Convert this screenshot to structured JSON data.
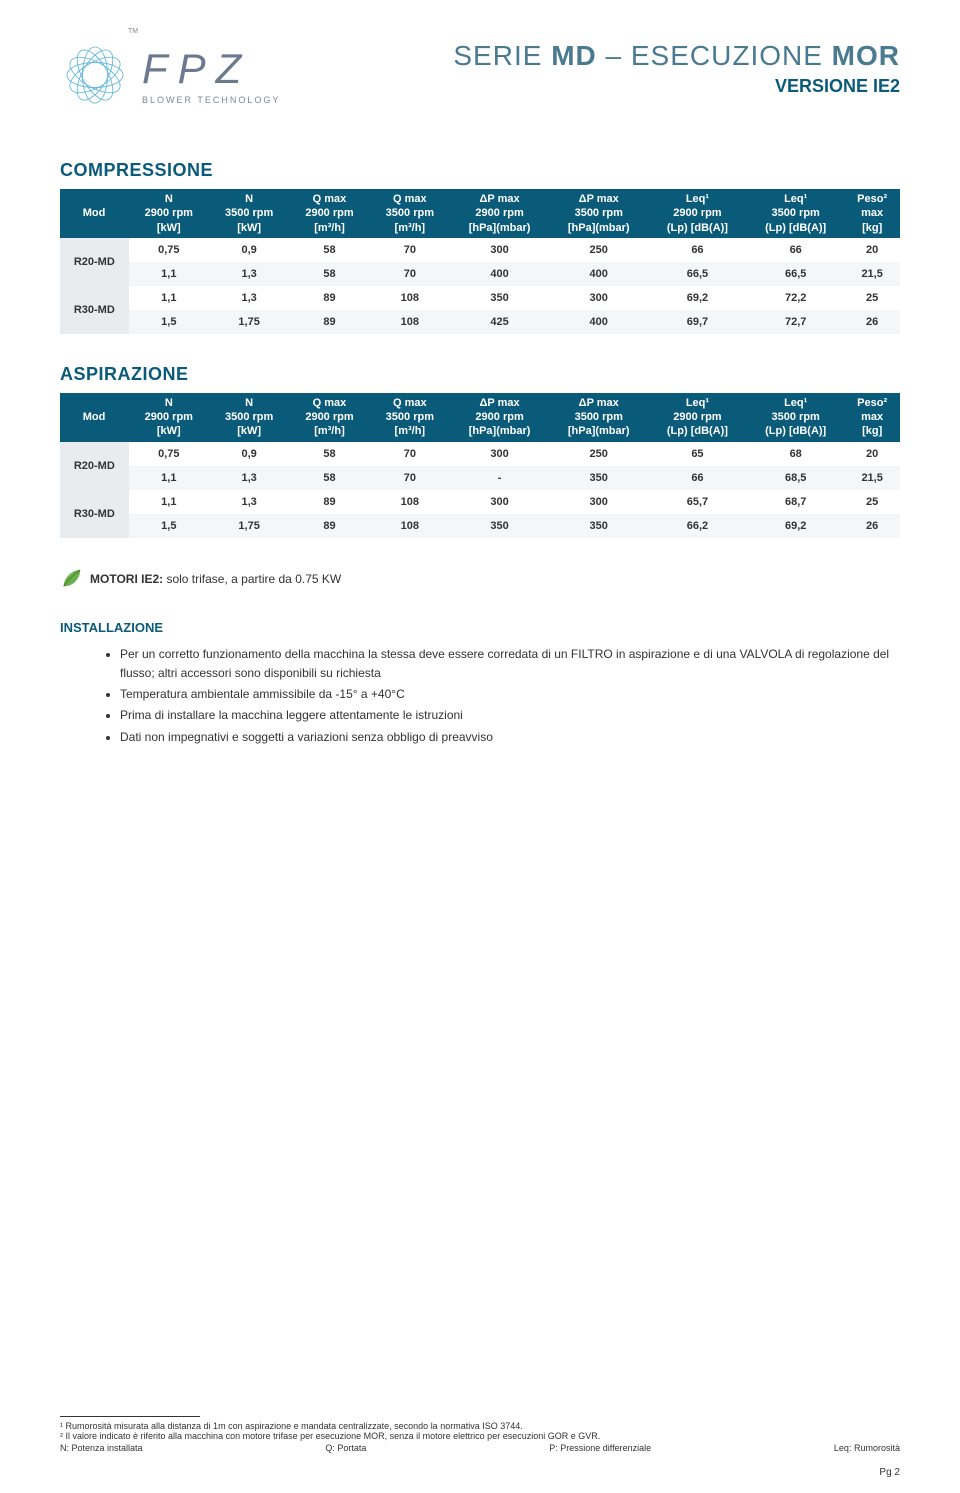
{
  "header": {
    "brand": "FPZ",
    "tagline": "BLOWER TECHNOLOGY",
    "tm": "TM",
    "title_line1_a": "SERIE ",
    "title_line1_b": "MD",
    "title_line1_c": " – ESECUZIONE ",
    "title_line1_d": "MOR",
    "title_line2": "VERSIONE IE2"
  },
  "colors": {
    "header_bg": "#0a5a7a",
    "header_text": "#ffffff",
    "mod_cell_bg": "#e8ecef",
    "row_alt_bg": "#f4f6f8",
    "accent": "#0a5a7a",
    "logo_blue": "#3fa9d4",
    "leaf_green": "#6ab04c"
  },
  "compressione": {
    "title": "COMPRESSIONE",
    "columns": [
      [
        "Mod",
        "",
        ""
      ],
      [
        "N",
        "2900 rpm",
        "[kW]"
      ],
      [
        "N",
        "3500 rpm",
        "[kW]"
      ],
      [
        "Q max",
        "2900 rpm",
        "[m³/h]"
      ],
      [
        "Q max",
        "3500 rpm",
        "[m³/h]"
      ],
      [
        "ΔP max",
        "2900 rpm",
        "[hPa](mbar)"
      ],
      [
        "ΔP max",
        "3500 rpm",
        "[hPa](mbar)"
      ],
      [
        "Leq¹",
        "2900 rpm",
        "(Lp) [dB(A)]"
      ],
      [
        "Leq¹",
        "3500 rpm",
        "(Lp) [dB(A)]"
      ],
      [
        "Peso²",
        "max",
        "[kg]"
      ]
    ],
    "groups": [
      {
        "mod": "R20-MD",
        "rows": [
          [
            "0,75",
            "0,9",
            "58",
            "70",
            "300",
            "250",
            "66",
            "66",
            "20"
          ],
          [
            "1,1",
            "1,3",
            "58",
            "70",
            "400",
            "400",
            "66,5",
            "66,5",
            "21,5"
          ]
        ]
      },
      {
        "mod": "R30-MD",
        "rows": [
          [
            "1,1",
            "1,3",
            "89",
            "108",
            "350",
            "300",
            "69,2",
            "72,2",
            "25"
          ],
          [
            "1,5",
            "1,75",
            "89",
            "108",
            "425",
            "400",
            "69,7",
            "72,7",
            "26"
          ]
        ]
      }
    ]
  },
  "aspirazione": {
    "title": "ASPIRAZIONE",
    "columns": [
      [
        "Mod",
        "",
        ""
      ],
      [
        "N",
        "2900 rpm",
        "[kW]"
      ],
      [
        "N",
        "3500 rpm",
        "[kW]"
      ],
      [
        "Q max",
        "2900 rpm",
        "[m³/h]"
      ],
      [
        "Q max",
        "3500 rpm",
        "[m³/h]"
      ],
      [
        "ΔP max",
        "2900 rpm",
        "[hPa](mbar)"
      ],
      [
        "ΔP max",
        "3500 rpm",
        "[hPa](mbar)"
      ],
      [
        "Leq¹",
        "2900 rpm",
        "(Lp) [dB(A)]"
      ],
      [
        "Leq¹",
        "3500 rpm",
        "(Lp) [dB(A)]"
      ],
      [
        "Peso²",
        "max",
        "[kg]"
      ]
    ],
    "groups": [
      {
        "mod": "R20-MD",
        "rows": [
          [
            "0,75",
            "0,9",
            "58",
            "70",
            "300",
            "250",
            "65",
            "68",
            "20"
          ],
          [
            "1,1",
            "1,3",
            "58",
            "70",
            "-",
            "350",
            "66",
            "68,5",
            "21,5"
          ]
        ]
      },
      {
        "mod": "R30-MD",
        "rows": [
          [
            "1,1",
            "1,3",
            "89",
            "108",
            "300",
            "300",
            "65,7",
            "68,7",
            "25"
          ],
          [
            "1,5",
            "1,75",
            "89",
            "108",
            "350",
            "350",
            "66,2",
            "69,2",
            "26"
          ]
        ]
      }
    ]
  },
  "motori": {
    "label": "MOTORI IE2:",
    "text": " solo trifase, a partire da 0.75 KW"
  },
  "installazione": {
    "title": "INSTALLAZIONE",
    "items": [
      "Per un corretto funzionamento della macchina la stessa deve essere corredata di un FILTRO in aspirazione e di una VALVOLA di regolazione del flusso; altri accessori sono disponibili su richiesta",
      "Temperatura ambientale ammissibile da -15° a +40°C",
      "Prima di installare la macchina leggere attentamente le istruzioni",
      "Dati non impegnativi e soggetti a variazioni senza obbligo di preavviso"
    ]
  },
  "footer": {
    "note1": "¹ Rumorosità misurata alla distanza di 1m con aspirazione e mandata centralizzate, secondo la normativa ISO 3744.",
    "note2": "² Il valore indicato è riferito alla macchina con motore trifase per esecuzione MOR, senza il motore elettrico per esecuzioni GOR e GVR.",
    "legend": [
      "N: Potenza installata",
      "Q: Portata",
      "P: Pressione differenziale",
      "Leq: Rumorosità"
    ],
    "page": "Pg 2"
  }
}
